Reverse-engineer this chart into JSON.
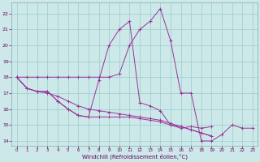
{
  "xlabel": "Windchill (Refroidissement éolien,°C)",
  "background_color": "#cce8e8",
  "grid_color": "#99cccc",
  "line_color": "#993399",
  "xlim": [
    -0.5,
    23.5
  ],
  "ylim": [
    13.7,
    22.7
  ],
  "yticks": [
    14,
    15,
    16,
    17,
    18,
    19,
    20,
    21,
    22
  ],
  "xticks": [
    0,
    1,
    2,
    3,
    4,
    5,
    6,
    7,
    8,
    9,
    10,
    11,
    12,
    13,
    14,
    15,
    16,
    17,
    18,
    19,
    20,
    21,
    22,
    23
  ],
  "series": [
    {
      "x": [
        0,
        1,
        2,
        3,
        4,
        5,
        6,
        7,
        8,
        9,
        10,
        11,
        12,
        13,
        14,
        15,
        16,
        17,
        18,
        19,
        20,
        21,
        22,
        23
      ],
      "y": [
        18.0,
        18.0,
        18.0,
        18.0,
        18.0,
        18.0,
        18.0,
        18.0,
        18.0,
        18.0,
        18.2,
        20.0,
        21.0,
        21.5,
        22.3,
        20.3,
        17.0,
        17.0,
        14.0,
        14.0,
        14.4,
        15.0,
        14.8,
        14.8
      ]
    },
    {
      "x": [
        0,
        1,
        2,
        3,
        4,
        5,
        6,
        7,
        8,
        9,
        10,
        11,
        12,
        13,
        14,
        15,
        16,
        17,
        18,
        19,
        20,
        21,
        22,
        23
      ],
      "y": [
        18.0,
        17.3,
        17.1,
        17.1,
        16.5,
        16.0,
        15.6,
        15.5,
        15.5,
        15.5,
        15.5,
        15.5,
        15.4,
        15.3,
        15.2,
        15.0,
        14.9,
        14.7,
        14.5,
        14.3,
        null,
        null,
        null,
        null
      ]
    },
    {
      "x": [
        0,
        1,
        2,
        3,
        4,
        5,
        6,
        7,
        8,
        9,
        10,
        11,
        12,
        13,
        14,
        15,
        16,
        17,
        18,
        19,
        20,
        21,
        22,
        23
      ],
      "y": [
        18.0,
        17.3,
        17.1,
        17.0,
        16.8,
        16.5,
        16.2,
        16.0,
        15.9,
        15.8,
        15.7,
        15.6,
        15.5,
        15.4,
        15.3,
        15.1,
        14.9,
        14.7,
        14.5,
        14.3,
        null,
        null,
        null,
        null
      ]
    },
    {
      "x": [
        0,
        1,
        2,
        3,
        4,
        5,
        6,
        7,
        8,
        9,
        10,
        11,
        12,
        13,
        14,
        15,
        16,
        17,
        18,
        19,
        20,
        21,
        22,
        23
      ],
      "y": [
        18.0,
        17.3,
        17.1,
        17.1,
        16.5,
        16.0,
        15.6,
        15.5,
        17.8,
        20.0,
        21.0,
        21.5,
        16.4,
        16.2,
        15.9,
        15.0,
        14.8,
        14.9,
        14.8,
        14.9,
        null,
        null,
        null,
        null
      ]
    }
  ]
}
